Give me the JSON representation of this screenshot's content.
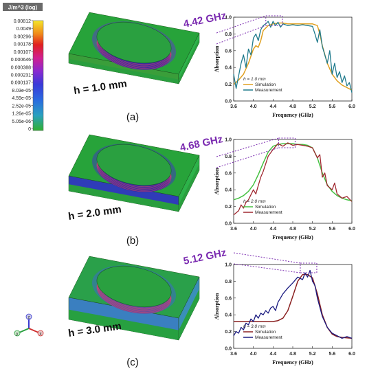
{
  "colorbar": {
    "title": "J/m^3 (log)",
    "ticks": [
      "0.00812",
      "0.0049",
      "0.00296",
      "0.00178",
      "0.00107",
      "0.000646",
      "0.000388",
      "0.000231",
      "0.000137",
      "8.03e-05",
      "4.59e-05",
      "2.52e-05",
      "1.26e-05",
      "5.05e-06",
      "0"
    ]
  },
  "axis_triad": {
    "x": "x",
    "y": "y",
    "z": "z"
  },
  "panels": [
    {
      "label": "(a)",
      "h_label": "h = 1.0 mm",
      "freq_callout": "4.42 GHz",
      "colors": {
        "top": "#27a33a",
        "mid": "#2db34a",
        "base": "#2a9e3e",
        "band": "#3a9e3a",
        "ring": "#3b2a9e",
        "spill": "#5a3fc0"
      },
      "legend_h": "h = 1.0 mm"
    },
    {
      "label": "(b)",
      "h_label": "h = 2.0 mm",
      "freq_callout": "4.68 GHz",
      "colors": {
        "top": "#27a33a",
        "mid": "#2db34a",
        "base": "#2a9e3e",
        "band": "#2f3cb8",
        "ring": "#3b2a9e",
        "spill": "#3e3bb8"
      },
      "legend_h": "h = 2.0 mm"
    },
    {
      "label": "(c)",
      "h_label": "h = 3.0 mm",
      "freq_callout": "5.12 GHz",
      "colors": {
        "top": "#2aa04a",
        "mid": "#3a8fb8",
        "base": "#27a040",
        "band": "#3a7fc0",
        "ring": "#6a4a9a",
        "spill": "#3a6ac8"
      },
      "legend_h": "h = 3.0 mm"
    }
  ],
  "chart_data": [
    {
      "type": "line",
      "xlabel": "Frequency (GHz)",
      "ylabel": "Absorption",
      "xlim": [
        3.6,
        6.0
      ],
      "ylim": [
        0.0,
        1.0
      ],
      "xticks": [
        "3.6",
        "4.0",
        "4.4",
        "4.8",
        "5.2",
        "5.6",
        "6.0"
      ],
      "yticks": [
        "0.0",
        "0.2",
        "0.4",
        "0.6",
        "0.8",
        "1.0"
      ],
      "series": [
        {
          "name": "Simulation",
          "color": "#e0a020",
          "x": [
            3.6,
            3.7,
            3.8,
            3.9,
            4.0,
            4.05,
            4.1,
            4.15,
            4.2,
            4.3,
            4.4,
            4.5,
            4.6,
            4.7,
            4.8,
            4.9,
            5.0,
            5.1,
            5.2,
            5.3,
            5.35,
            5.4,
            5.5,
            5.6,
            5.7,
            5.8,
            5.9,
            6.0
          ],
          "y": [
            0.2,
            0.25,
            0.32,
            0.45,
            0.62,
            0.66,
            0.64,
            0.72,
            0.84,
            0.9,
            0.92,
            0.93,
            0.93,
            0.92,
            0.92,
            0.92,
            0.92,
            0.92,
            0.92,
            0.9,
            0.8,
            0.66,
            0.45,
            0.32,
            0.24,
            0.19,
            0.16,
            0.13
          ]
        },
        {
          "name": "Measurement",
          "color": "#1f7a8c",
          "x": [
            3.6,
            3.65,
            3.7,
            3.75,
            3.8,
            3.85,
            3.9,
            3.95,
            4.0,
            4.05,
            4.1,
            4.15,
            4.2,
            4.25,
            4.3,
            4.35,
            4.4,
            4.45,
            4.5,
            4.55,
            4.6,
            4.7,
            4.8,
            4.9,
            5.0,
            5.1,
            5.2,
            5.25,
            5.3,
            5.35,
            5.4,
            5.45,
            5.5,
            5.55,
            5.6,
            5.65,
            5.7,
            5.75,
            5.8,
            5.85,
            5.9,
            5.95,
            6.0
          ],
          "y": [
            0.32,
            0.15,
            0.3,
            0.45,
            0.55,
            0.4,
            0.62,
            0.55,
            0.75,
            0.8,
            0.72,
            0.85,
            0.9,
            0.92,
            0.95,
            0.88,
            0.95,
            0.9,
            0.94,
            0.88,
            0.92,
            0.9,
            0.91,
            0.9,
            0.91,
            0.9,
            0.89,
            0.8,
            0.7,
            0.85,
            0.65,
            0.55,
            0.45,
            0.6,
            0.32,
            0.45,
            0.28,
            0.35,
            0.22,
            0.3,
            0.18,
            0.22,
            0.1
          ]
        }
      ]
    },
    {
      "type": "line",
      "xlabel": "Frequency (GHz)",
      "ylabel": "Absorption",
      "xlim": [
        3.6,
        6.0
      ],
      "ylim": [
        0.0,
        1.0
      ],
      "xticks": [
        "3.6",
        "4.0",
        "4.4",
        "4.8",
        "5.2",
        "5.6",
        "6.0"
      ],
      "yticks": [
        "0.0",
        "0.2",
        "0.4",
        "0.6",
        "0.8",
        "1.0"
      ],
      "series": [
        {
          "name": "Simulation",
          "color": "#44c040",
          "x": [
            3.6,
            3.7,
            3.8,
            3.9,
            4.0,
            4.1,
            4.2,
            4.3,
            4.4,
            4.5,
            4.6,
            4.7,
            4.8,
            4.9,
            5.0,
            5.1,
            5.2,
            5.3,
            5.4,
            5.5,
            5.6,
            5.7,
            5.8,
            5.9,
            6.0
          ],
          "y": [
            0.28,
            0.3,
            0.33,
            0.38,
            0.46,
            0.58,
            0.72,
            0.85,
            0.92,
            0.94,
            0.95,
            0.95,
            0.95,
            0.94,
            0.94,
            0.93,
            0.9,
            0.78,
            0.6,
            0.46,
            0.38,
            0.33,
            0.3,
            0.28,
            0.27
          ]
        },
        {
          "name": "Measurement",
          "color": "#a02830",
          "x": [
            3.6,
            3.7,
            3.75,
            3.8,
            3.85,
            3.9,
            4.0,
            4.05,
            4.1,
            4.15,
            4.2,
            4.3,
            4.4,
            4.5,
            4.6,
            4.7,
            4.8,
            4.9,
            5.0,
            5.1,
            5.2,
            5.3,
            5.35,
            5.4,
            5.45,
            5.5,
            5.6,
            5.65,
            5.7,
            5.8,
            5.9,
            6.0
          ],
          "y": [
            0.1,
            0.15,
            0.22,
            0.18,
            0.25,
            0.28,
            0.4,
            0.35,
            0.45,
            0.55,
            0.62,
            0.8,
            0.88,
            0.95,
            0.92,
            0.96,
            0.93,
            0.94,
            0.93,
            0.92,
            0.9,
            0.78,
            0.82,
            0.55,
            0.6,
            0.45,
            0.4,
            0.48,
            0.35,
            0.3,
            0.32,
            0.26
          ]
        }
      ]
    },
    {
      "type": "line",
      "xlabel": "Frequency (GHz)",
      "ylabel": "Absorption",
      "xlim": [
        3.6,
        6.0
      ],
      "ylim": [
        0.0,
        1.0
      ],
      "xticks": [
        "3.6",
        "4.0",
        "4.4",
        "4.8",
        "5.2",
        "5.6",
        "6.0"
      ],
      "yticks": [
        "0.0",
        "0.2",
        "0.4",
        "0.6",
        "0.8",
        "1.0"
      ],
      "series": [
        {
          "name": "Simulation",
          "color": "#8a2020",
          "x": [
            3.6,
            3.8,
            4.0,
            4.2,
            4.4,
            4.5,
            4.6,
            4.7,
            4.8,
            4.9,
            5.0,
            5.1,
            5.2,
            5.3,
            5.4,
            5.5,
            5.6,
            5.7,
            5.8,
            6.0
          ],
          "y": [
            0.32,
            0.32,
            0.32,
            0.32,
            0.32,
            0.33,
            0.36,
            0.45,
            0.62,
            0.8,
            0.88,
            0.88,
            0.84,
            0.65,
            0.4,
            0.25,
            0.17,
            0.14,
            0.13,
            0.12
          ]
        },
        {
          "name": "Measurement",
          "color": "#1a1a80",
          "x": [
            3.6,
            3.65,
            3.7,
            3.75,
            3.8,
            3.85,
            3.9,
            3.95,
            4.0,
            4.05,
            4.1,
            4.15,
            4.2,
            4.25,
            4.3,
            4.35,
            4.4,
            4.45,
            4.5,
            4.55,
            4.6,
            4.7,
            4.8,
            4.9,
            5.0,
            5.05,
            5.1,
            5.15,
            5.2,
            5.25,
            5.3,
            5.4,
            5.5,
            5.6,
            5.7,
            5.8,
            5.9,
            6.0
          ],
          "y": [
            0.15,
            0.2,
            0.18,
            0.25,
            0.22,
            0.3,
            0.28,
            0.35,
            0.32,
            0.4,
            0.36,
            0.42,
            0.4,
            0.45,
            0.42,
            0.48,
            0.5,
            0.45,
            0.55,
            0.6,
            0.65,
            0.72,
            0.78,
            0.85,
            0.82,
            0.9,
            0.85,
            0.93,
            0.8,
            0.75,
            0.6,
            0.38,
            0.25,
            0.18,
            0.15,
            0.12,
            0.14,
            0.12
          ]
        }
      ]
    }
  ]
}
